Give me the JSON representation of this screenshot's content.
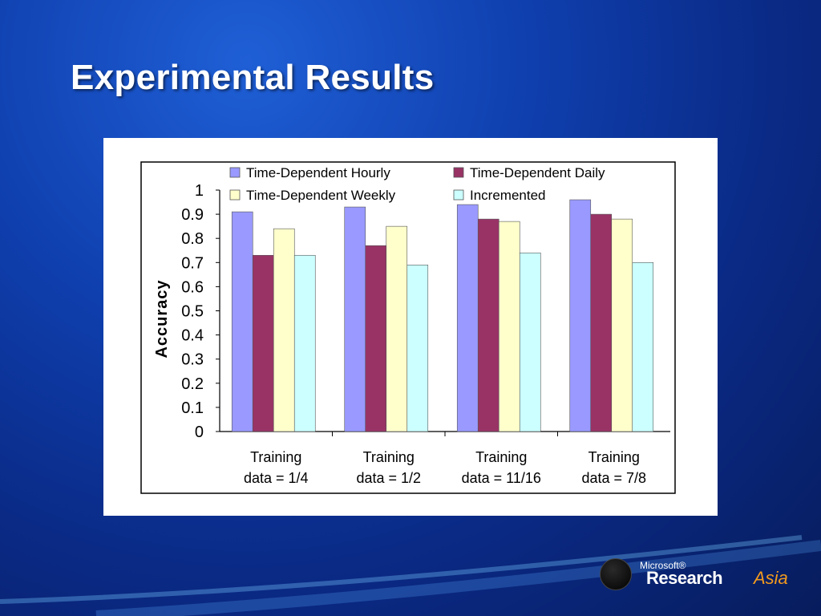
{
  "slide": {
    "title": "Experimental Results"
  },
  "logo": {
    "microsoft": "Microsoft®",
    "research": "Research",
    "asia": "Asia"
  },
  "chart_data": {
    "type": "bar",
    "title": "",
    "xlabel": "",
    "ylabel": "Accuracy",
    "ylim": [
      0,
      1
    ],
    "yticks": [
      "0",
      "0.1",
      "0.2",
      "0.3",
      "0.4",
      "0.5",
      "0.6",
      "0.7",
      "0.8",
      "0.9",
      "1"
    ],
    "grid": false,
    "legend_position": "top",
    "categories": [
      [
        "Training",
        "data = 1/4"
      ],
      [
        "Training",
        "data = 1/2"
      ],
      [
        "Training",
        "data = 11/16"
      ],
      [
        "Training",
        "data = 7/8"
      ]
    ],
    "series": [
      {
        "name": "Time-Dependent Hourly",
        "color": "#9999ff",
        "values": [
          0.91,
          0.93,
          0.94,
          0.96
        ]
      },
      {
        "name": "Time-Dependent Daily",
        "color": "#993366",
        "values": [
          0.73,
          0.77,
          0.88,
          0.9
        ]
      },
      {
        "name": "Time-Dependent Weekly",
        "color": "#ffffcc",
        "values": [
          0.84,
          0.85,
          0.87,
          0.88
        ]
      },
      {
        "name": "Incremented",
        "color": "#ccffff",
        "values": [
          0.73,
          0.69,
          0.74,
          0.7
        ]
      }
    ]
  }
}
